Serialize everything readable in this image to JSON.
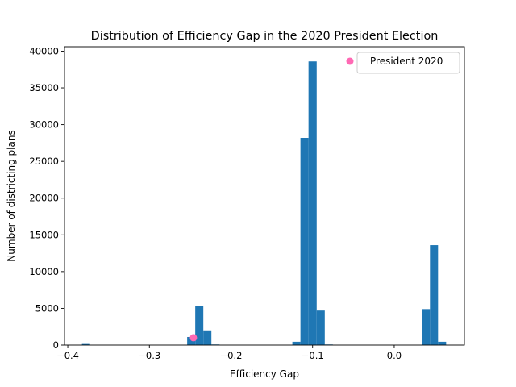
{
  "chart_data": {
    "type": "bar",
    "title": "Distribution of Efficiency Gap in the 2020 President Election",
    "xlabel": "Efficiency Gap",
    "ylabel": "Number of districting plans",
    "xlim": [
      -0.404,
      0.086
    ],
    "ylim": [
      0,
      40600
    ],
    "xticks": [
      {
        "value": -0.4,
        "label": "−0.4"
      },
      {
        "value": -0.3,
        "label": "−0.3"
      },
      {
        "value": -0.2,
        "label": "−0.2"
      },
      {
        "value": -0.1,
        "label": "−0.1"
      },
      {
        "value": 0.0,
        "label": "0.0"
      }
    ],
    "yticks": [
      {
        "value": 0,
        "label": "0"
      },
      {
        "value": 5000,
        "label": "5000"
      },
      {
        "value": 10000,
        "label": "10000"
      },
      {
        "value": 15000,
        "label": "15000"
      },
      {
        "value": 20000,
        "label": "20000"
      },
      {
        "value": 25000,
        "label": "25000"
      },
      {
        "value": 30000,
        "label": "30000"
      },
      {
        "value": 35000,
        "label": "35000"
      },
      {
        "value": 40000,
        "label": "40000"
      }
    ],
    "bins": [
      {
        "x0": -0.3826,
        "x1": -0.3727,
        "count": 150
      },
      {
        "x0": -0.2537,
        "x1": -0.2438,
        "count": 1100
      },
      {
        "x0": -0.2438,
        "x1": -0.2339,
        "count": 5300
      },
      {
        "x0": -0.2339,
        "x1": -0.224,
        "count": 2000
      },
      {
        "x0": -0.224,
        "x1": -0.214,
        "count": 80
      },
      {
        "x0": -0.1248,
        "x1": -0.1149,
        "count": 450
      },
      {
        "x0": -0.1149,
        "x1": -0.105,
        "count": 28200
      },
      {
        "x0": -0.105,
        "x1": -0.095,
        "count": 38600
      },
      {
        "x0": -0.095,
        "x1": -0.0851,
        "count": 4700
      },
      {
        "x0": -0.0851,
        "x1": -0.0752,
        "count": 80
      },
      {
        "x0": 0.0339,
        "x1": 0.0438,
        "count": 4900
      },
      {
        "x0": 0.0438,
        "x1": 0.0537,
        "count": 13600
      },
      {
        "x0": 0.0537,
        "x1": 0.0636,
        "count": 450
      }
    ],
    "bar_color": "#1f77b4",
    "marker": {
      "name": "President 2020",
      "x": -0.246,
      "y": 1000,
      "color": "#ff69b4"
    },
    "legend": {
      "placement": "top-right",
      "entries": [
        "President 2020"
      ]
    },
    "grid": false
  }
}
